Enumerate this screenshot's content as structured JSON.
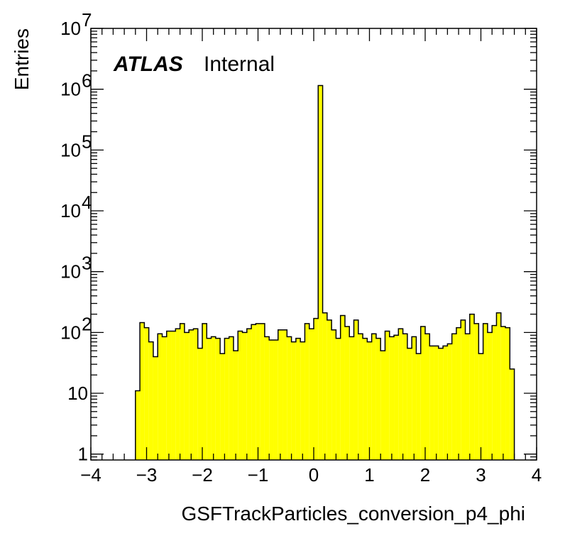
{
  "chart_data": {
    "type": "histogram",
    "title": "",
    "xlabel": "GSFTrackParticles_conversion_p4_phi",
    "ylabel": "Entries",
    "xlim": [
      -4,
      4
    ],
    "ylim": [
      0.8,
      10000000
    ],
    "yscale": "log",
    "grid": false,
    "legend": "none",
    "fill_color": "#ffff00",
    "line_color": "#000000",
    "label": {
      "experiment": "ATLAS",
      "status": "Internal"
    },
    "x_ticks": [
      {
        "value": -4,
        "label": "−4"
      },
      {
        "value": -3,
        "label": "−3"
      },
      {
        "value": -2,
        "label": "−2"
      },
      {
        "value": -1,
        "label": "−1"
      },
      {
        "value": 0,
        "label": "0"
      },
      {
        "value": 1,
        "label": "1"
      },
      {
        "value": 2,
        "label": "2"
      },
      {
        "value": 3,
        "label": "3"
      },
      {
        "value": 4,
        "label": "4"
      }
    ],
    "y_ticks": [
      {
        "value": 1,
        "base": "1",
        "exp": ""
      },
      {
        "value": 10,
        "base": "10",
        "exp": ""
      },
      {
        "value": 100,
        "base": "10",
        "exp": "2"
      },
      {
        "value": 1000,
        "base": "10",
        "exp": "3"
      },
      {
        "value": 10000,
        "base": "10",
        "exp": "4"
      },
      {
        "value": 100000,
        "base": "10",
        "exp": "5"
      },
      {
        "value": 1000000,
        "base": "10",
        "exp": "6"
      },
      {
        "value": 10000000,
        "base": "10",
        "exp": "7"
      }
    ],
    "bin_low": -3.2,
    "bin_width": 0.08,
    "values": [
      11,
      145,
      120,
      70,
      40,
      95,
      85,
      105,
      105,
      115,
      140,
      100,
      110,
      115,
      55,
      140,
      80,
      85,
      80,
      45,
      80,
      85,
      50,
      105,
      100,
      115,
      135,
      140,
      140,
      85,
      75,
      75,
      110,
      110,
      85,
      70,
      80,
      70,
      140,
      115,
      170,
      1150000,
      210,
      160,
      110,
      80,
      190,
      125,
      85,
      160,
      95,
      80,
      70,
      95,
      80,
      50,
      105,
      85,
      90,
      115,
      95,
      55,
      85,
      45,
      125,
      95,
      60,
      60,
      55,
      60,
      65,
      95,
      120,
      160,
      95,
      200,
      140,
      45,
      140,
      100,
      130,
      210,
      125,
      120,
      25
    ]
  }
}
